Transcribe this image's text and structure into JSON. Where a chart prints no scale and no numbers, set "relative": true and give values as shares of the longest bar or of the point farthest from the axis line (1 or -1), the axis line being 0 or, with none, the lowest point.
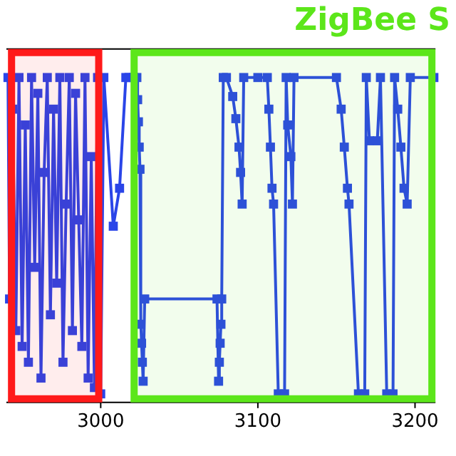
{
  "chart_data": {
    "type": "line",
    "title": "ZigBee S",
    "relative": true,
    "marker": "square",
    "grid": false,
    "xlim": [
      2940,
      3213
    ],
    "xticks": [
      3000,
      3100,
      3200
    ],
    "bands": [
      {
        "axis": "x",
        "from": 2941,
        "to": 3001,
        "color": "#ff1a1a"
      },
      {
        "axis": "x",
        "from": 3019,
        "to": 3213,
        "color": "#5ce61a"
      }
    ],
    "series": [
      {
        "color": "#2a45e8",
        "x": [
          2941,
          2942,
          2944,
          2946,
          2948,
          2950,
          2952,
          2954,
          2956,
          2958,
          2960,
          2962,
          2964,
          2966,
          2968,
          2970,
          2972,
          2974,
          2976,
          2978,
          2980,
          2982,
          2984,
          2986,
          2988,
          2990,
          2992,
          2994,
          2996,
          2998,
          3000,
          3002,
          3008,
          3012,
          3016,
          3018,
          3021,
          3023,
          3023.5,
          3024,
          3024.5,
          3025,
          3025.5,
          3026,
          3026.5,
          3027,
          3028,
          3074,
          3075,
          3075.5,
          3076,
          3076.5,
          3077,
          3078,
          3080,
          3084,
          3086,
          3088,
          3089,
          3090,
          3091,
          3100,
          3106,
          3107,
          3108,
          3109,
          3110,
          3113,
          3117,
          3118,
          3119,
          3121,
          3122,
          3123,
          3150,
          3153,
          3155,
          3157,
          3158,
          3164,
          3168,
          3169,
          3171,
          3176,
          3178,
          3182,
          3186,
          3187,
          3189,
          3191,
          3193,
          3195,
          3197,
          3212
        ],
        "values": [
          1,
          0.3,
          0.9,
          0.2,
          1,
          0.15,
          0.85,
          0.1,
          1,
          0.4,
          0.95,
          0.05,
          0.7,
          1,
          0.25,
          0.9,
          0.35,
          1,
          0.1,
          0.6,
          1,
          0.2,
          0.95,
          0.55,
          0.15,
          1,
          0.05,
          0.75,
          0.02,
          1,
          0,
          1,
          0.53,
          0.65,
          1,
          1,
          1,
          1,
          0.93,
          0.86,
          0.78,
          0.71,
          0.22,
          0.16,
          0.1,
          0.04,
          0.3,
          0.3,
          0.04,
          0.1,
          0.16,
          0.22,
          0.3,
          1,
          1,
          0.94,
          0.87,
          0.78,
          0.7,
          0.6,
          1,
          1,
          1,
          0.9,
          0.78,
          0.65,
          0.6,
          0,
          0,
          1,
          0.85,
          0.75,
          0.6,
          1,
          1,
          0.9,
          0.78,
          0.65,
          0.6,
          0,
          0,
          1,
          0.8,
          0.8,
          1,
          0,
          0,
          1,
          0.9,
          0.78,
          0.65,
          0.6,
          1,
          1
        ]
      }
    ]
  }
}
